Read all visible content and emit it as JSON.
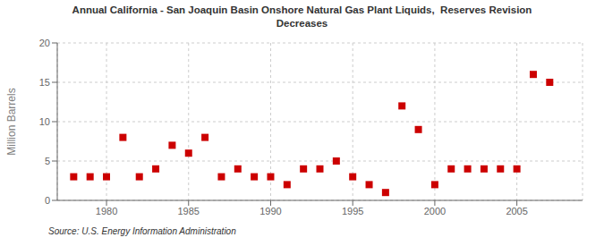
{
  "chart_data": {
    "type": "scatter",
    "title": "Annual California - San Joaquin Basin Onshore Natural Gas Plant Liquids,  Reserves Revision\nDecreases",
    "ylabel": "Million Barrels",
    "annotations": [
      "Source: U.S. Energy Information Administration"
    ],
    "x": [
      1978,
      1979,
      1980,
      1981,
      1982,
      1983,
      1984,
      1985,
      1986,
      1987,
      1988,
      1989,
      1990,
      1991,
      1992,
      1993,
      1994,
      1995,
      1996,
      1997,
      1998,
      1999,
      2000,
      2001,
      2002,
      2003,
      2004,
      2005,
      2006,
      2007
    ],
    "values": [
      3.0,
      3.0,
      3.0,
      8.0,
      3.0,
      4.0,
      7.0,
      6.0,
      8.0,
      3.0,
      4.0,
      3.0,
      3.0,
      2.0,
      4.0,
      4.0,
      5.0,
      3.0,
      2.0,
      1.0,
      12.0,
      9.0,
      2.0,
      4.0,
      4.0,
      4.0,
      4.0,
      4.0,
      16.0,
      15.0
    ],
    "color": "#CC0000",
    "marker": "square",
    "xlim": [
      1977,
      2009
    ],
    "xticks": [
      1980,
      1985,
      1990,
      1995,
      2000,
      2005
    ],
    "ylim": [
      0,
      20
    ],
    "yticks": [
      0,
      5,
      10,
      15,
      20
    ],
    "grid": true
  }
}
